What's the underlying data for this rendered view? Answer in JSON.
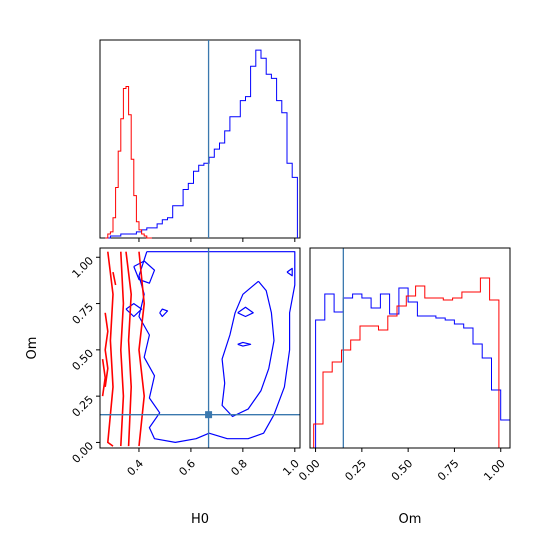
{
  "chart_data": {
    "type": "corner",
    "title": "",
    "truth": {
      "H0": 0.668,
      "Om": 0.15
    },
    "colors": {
      "blue": "#0000ff",
      "red": "#ff0000",
      "truth": "#3a78ae"
    },
    "panels": [
      {
        "id": "hist-H0",
        "type": "histogram",
        "xlim": [
          0.25,
          1.02
        ],
        "xticks": [
          0.4,
          0.6,
          0.8,
          1.0
        ],
        "series": [
          {
            "color": "#0000ff",
            "edges": [
              0.27,
              0.29,
              0.31,
              0.33,
              0.35,
              0.37,
              0.39,
              0.41,
              0.43,
              0.45,
              0.47,
              0.49,
              0.51,
              0.53,
              0.55,
              0.57,
              0.59,
              0.61,
              0.63,
              0.65,
              0.67,
              0.69,
              0.71,
              0.73,
              0.75,
              0.77,
              0.79,
              0.81,
              0.83,
              0.85,
              0.87,
              0.89,
              0.91,
              0.93,
              0.95,
              0.97,
              0.99,
              1.01
            ],
            "counts": [
              0.0,
              0.01,
              0.01,
              0.02,
              0.02,
              0.02,
              0.03,
              0.04,
              0.05,
              0.05,
              0.07,
              0.09,
              0.1,
              0.16,
              0.16,
              0.24,
              0.27,
              0.33,
              0.36,
              0.37,
              0.4,
              0.44,
              0.47,
              0.53,
              0.6,
              0.6,
              0.68,
              0.7,
              0.85,
              0.93,
              0.89,
              0.81,
              0.79,
              0.68,
              0.62,
              0.37,
              0.3,
              0.0
            ]
          },
          {
            "color": "#ff0000",
            "edges": [
              0.27,
              0.28,
              0.29,
              0.3,
              0.31,
              0.32,
              0.33,
              0.34,
              0.35,
              0.36,
              0.37,
              0.38,
              0.39,
              0.4,
              0.41,
              0.42,
              0.43,
              0.44,
              0.45
            ],
            "counts": [
              0.0,
              0.02,
              0.03,
              0.1,
              0.25,
              0.43,
              0.59,
              0.74,
              0.75,
              0.61,
              0.39,
              0.21,
              0.08,
              0.04,
              0.02,
              0.01,
              0.0,
              0.0
            ]
          }
        ]
      },
      {
        "id": "contour-H0-Om",
        "type": "contour",
        "xlim": [
          0.25,
          1.02
        ],
        "ylim": [
          -0.03,
          1.05
        ],
        "xticks": [
          0.4,
          0.6,
          0.8,
          1.0
        ],
        "xtick_labels": [
          "0.4",
          "0.6",
          "0.8",
          "1.0"
        ],
        "yticks": [
          0.0,
          0.25,
          0.5,
          0.75,
          1.0
        ],
        "ytick_labels": [
          "0.00",
          "0.25",
          "0.50",
          "0.75",
          "1.00"
        ],
        "xlabel": "H0",
        "ylabel": "Om",
        "series": [
          {
            "color": "#0000ff",
            "contours": [
              [
                [
                  0.43,
                  1.03
                ],
                [
                  0.5,
                  1.03
                ],
                [
                  0.6,
                  1.03
                ],
                [
                  0.7,
                  1.03
                ],
                [
                  0.8,
                  1.03
                ],
                [
                  0.9,
                  1.03
                ],
                [
                  1.0,
                  1.03
                ],
                [
                  1.0,
                  0.85
                ],
                [
                  0.98,
                  0.7
                ],
                [
                  0.98,
                  0.5
                ],
                [
                  0.96,
                  0.3
                ],
                [
                  0.92,
                  0.15
                ],
                [
                  0.88,
                  0.05
                ],
                [
                  0.82,
                  0.02
                ],
                [
                  0.74,
                  0.02
                ],
                [
                  0.67,
                  0.05
                ],
                [
                  0.62,
                  0.02
                ],
                [
                  0.54,
                  0.0
                ],
                [
                  0.46,
                  0.02
                ],
                [
                  0.44,
                  0.08
                ],
                [
                  0.48,
                  0.16
                ],
                [
                  0.44,
                  0.24
                ],
                [
                  0.46,
                  0.36
                ],
                [
                  0.42,
                  0.46
                ],
                [
                  0.44,
                  0.58
                ],
                [
                  0.4,
                  0.68
                ],
                [
                  0.42,
                  0.8
                ],
                [
                  0.4,
                  0.9
                ],
                [
                  0.43,
                  1.03
                ]
              ],
              [
                [
                  0.86,
                  0.87
                ],
                [
                  0.89,
                  0.82
                ],
                [
                  0.91,
                  0.7
                ],
                [
                  0.92,
                  0.55
                ],
                [
                  0.9,
                  0.4
                ],
                [
                  0.87,
                  0.28
                ],
                [
                  0.82,
                  0.18
                ],
                [
                  0.76,
                  0.14
                ],
                [
                  0.72,
                  0.2
                ],
                [
                  0.73,
                  0.32
                ],
                [
                  0.72,
                  0.45
                ],
                [
                  0.75,
                  0.58
                ],
                [
                  0.77,
                  0.7
                ],
                [
                  0.8,
                  0.8
                ],
                [
                  0.86,
                  0.87
                ]
              ],
              [
                [
                  0.78,
                  0.7
                ],
                [
                  0.81,
                  0.73
                ],
                [
                  0.84,
                  0.7
                ],
                [
                  0.81,
                  0.68
                ],
                [
                  0.78,
                  0.7
                ]
              ],
              [
                [
                  0.78,
                  0.53
                ],
                [
                  0.8,
                  0.54
                ],
                [
                  0.83,
                  0.53
                ],
                [
                  0.8,
                  0.52
                ],
                [
                  0.78,
                  0.53
                ]
              ],
              [
                [
                  0.38,
                  0.95
                ],
                [
                  0.42,
                  0.98
                ],
                [
                  0.46,
                  0.93
                ],
                [
                  0.44,
                  0.86
                ],
                [
                  0.4,
                  0.88
                ],
                [
                  0.38,
                  0.95
                ]
              ],
              [
                [
                  0.35,
                  0.72
                ],
                [
                  0.38,
                  0.75
                ],
                [
                  0.41,
                  0.72
                ],
                [
                  0.38,
                  0.68
                ],
                [
                  0.35,
                  0.72
                ]
              ],
              [
                [
                  0.48,
                  0.7
                ],
                [
                  0.49,
                  0.72
                ],
                [
                  0.51,
                  0.71
                ],
                [
                  0.49,
                  0.68
                ],
                [
                  0.48,
                  0.7
                ]
              ],
              [
                [
                  0.97,
                  0.92
                ],
                [
                  0.99,
                  0.94
                ],
                [
                  0.99,
                  0.9
                ],
                [
                  0.97,
                  0.92
                ]
              ]
            ]
          },
          {
            "color": "#ff0000",
            "contours": [
              [
                [
                  0.28,
                  1.03
                ],
                [
                  0.3,
                  0.8
                ],
                [
                  0.29,
                  0.55
                ],
                [
                  0.3,
                  0.3
                ],
                [
                  0.28,
                  0.0
                ],
                [
                  0.3,
                  -0.02
                ]
              ],
              [
                [
                  0.33,
                  1.03
                ],
                [
                  0.34,
                  0.75
                ],
                [
                  0.33,
                  0.5
                ],
                [
                  0.34,
                  0.25
                ],
                [
                  0.33,
                  -0.02
                ]
              ],
              [
                [
                  0.35,
                  1.03
                ],
                [
                  0.37,
                  0.8
                ],
                [
                  0.36,
                  0.55
                ],
                [
                  0.37,
                  0.3
                ],
                [
                  0.36,
                  -0.02
                ]
              ],
              [
                [
                  0.4,
                  1.03
                ],
                [
                  0.42,
                  0.75
                ],
                [
                  0.4,
                  0.5
                ],
                [
                  0.42,
                  0.25
                ],
                [
                  0.4,
                  -0.02
                ]
              ],
              [
                [
                  0.27,
                  0.7
                ],
                [
                  0.28,
                  0.6
                ],
                [
                  0.27,
                  0.5
                ],
                [
                  0.28,
                  0.4
                ],
                [
                  0.27,
                  0.3
                ]
              ],
              [
                [
                  0.26,
                  0.45
                ],
                [
                  0.27,
                  0.35
                ],
                [
                  0.26,
                  0.25
                ]
              ],
              [
                [
                  0.3,
                  0.92
                ],
                [
                  0.31,
                  0.85
                ]
              ]
            ]
          }
        ]
      },
      {
        "id": "hist-Om",
        "type": "histogram",
        "xlim": [
          -0.03,
          1.05
        ],
        "xticks": [
          0.0,
          0.25,
          0.5,
          0.75,
          1.0
        ],
        "xtick_labels": [
          "0.00",
          "0.25",
          "0.50",
          "0.75",
          "1.00"
        ],
        "xlabel": "Om",
        "series": [
          {
            "color": "#0000ff",
            "edges": [
              0.0,
              0.05,
              0.1,
              0.15,
              0.2,
              0.25,
              0.3,
              0.35,
              0.4,
              0.45,
              0.5,
              0.55,
              0.6,
              0.65,
              0.7,
              0.75,
              0.8,
              0.85,
              0.9,
              0.95,
              1.0,
              1.05
            ],
            "counts": [
              0.64,
              0.77,
              0.68,
              0.75,
              0.77,
              0.75,
              0.7,
              0.77,
              0.67,
              0.8,
              0.73,
              0.66,
              0.66,
              0.65,
              0.64,
              0.62,
              0.6,
              0.52,
              0.45,
              0.29,
              0.14
            ]
          },
          {
            "color": "#ff0000",
            "edges": [
              -0.01,
              0.04,
              0.09,
              0.14,
              0.19,
              0.24,
              0.29,
              0.34,
              0.39,
              0.44,
              0.49,
              0.54,
              0.59,
              0.64,
              0.69,
              0.74,
              0.79,
              0.84,
              0.89,
              0.94,
              0.99
            ],
            "counts": [
              0.12,
              0.38,
              0.43,
              0.49,
              0.54,
              0.61,
              0.61,
              0.59,
              0.66,
              0.71,
              0.76,
              0.81,
              0.75,
              0.75,
              0.74,
              0.75,
              0.78,
              0.78,
              0.85,
              0.74
            ]
          }
        ]
      }
    ]
  }
}
